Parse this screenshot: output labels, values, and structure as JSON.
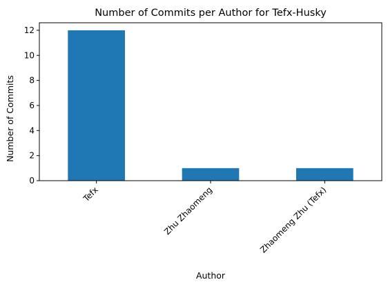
{
  "chart_data": {
    "type": "bar",
    "title": "Number of Commits per Author for Tefx-Husky",
    "xlabel": "Author",
    "ylabel": "Number of Commits",
    "categories": [
      "Tefx",
      "Zhu Zhaomeng",
      "Zhaomeng Zhu (Tefx)"
    ],
    "values": [
      12,
      1,
      1
    ],
    "ylim": [
      0,
      12.6
    ],
    "yticks": [
      0,
      2,
      4,
      6,
      8,
      10,
      12
    ],
    "grid": false,
    "legend": "none",
    "bar_color": "#1f77b4"
  }
}
